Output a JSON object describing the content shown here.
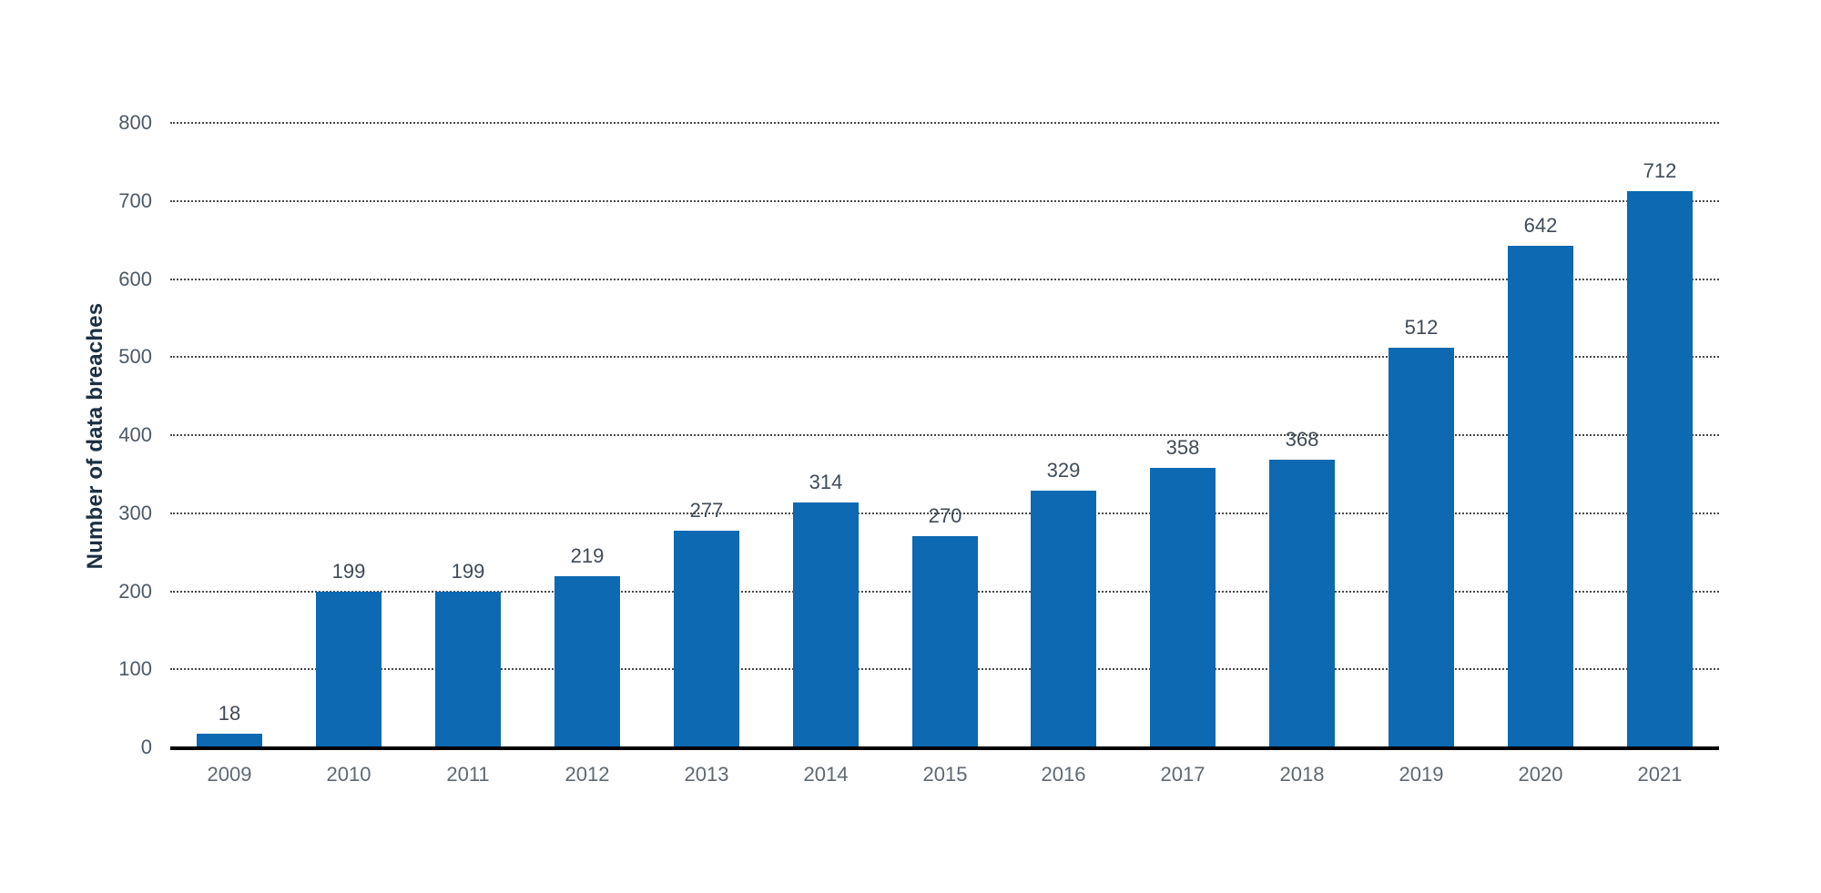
{
  "chart_data": {
    "type": "bar",
    "title": "",
    "xlabel": "",
    "ylabel": "Number of data breaches",
    "categories": [
      "2009",
      "2010",
      "2011",
      "2012",
      "2013",
      "2014",
      "2015",
      "2016",
      "2017",
      "2018",
      "2019",
      "2020",
      "2021"
    ],
    "values": [
      18,
      199,
      199,
      219,
      277,
      314,
      270,
      329,
      358,
      368,
      512,
      642,
      712
    ],
    "value_labels_shown": true,
    "ylim": [
      0,
      800
    ],
    "yticks": [
      0,
      100,
      200,
      300,
      400,
      500,
      600,
      700,
      800
    ],
    "grid": "horizontal-dotted",
    "legend_position": "none",
    "colors": {
      "bar_fill": "#0c69b2",
      "axis_line": "#000000",
      "gridline": "#4a4a4a",
      "y_tick_label": "#4e5a67",
      "value_label": "#404b57",
      "x_tick_label": "#5f6871",
      "y_axis_title": "#1d3043",
      "background": "#ffffff"
    }
  }
}
